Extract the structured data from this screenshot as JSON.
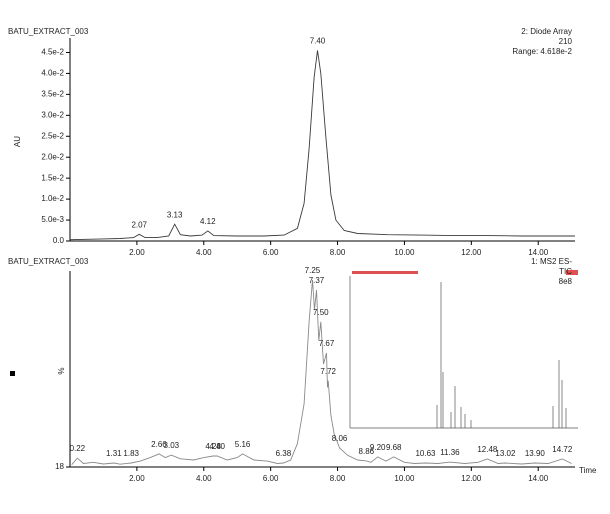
{
  "chart_data": [
    {
      "type": "line",
      "title": "BATU_EXTRACT_003",
      "header_right": [
        "2: Diode Array",
        "210",
        "Range: 4.618e-2"
      ],
      "y_label": "AU",
      "x": [
        0.0,
        0.5,
        1.0,
        1.5,
        1.9,
        2.07,
        2.25,
        2.6,
        2.95,
        3.13,
        3.3,
        3.6,
        3.95,
        4.12,
        4.3,
        5.0,
        5.8,
        6.4,
        6.8,
        7.0,
        7.15,
        7.3,
        7.4,
        7.5,
        7.65,
        7.8,
        7.95,
        8.2,
        8.6,
        9.5,
        10.5,
        11.5,
        12.5,
        13.5,
        14.5,
        15.1
      ],
      "series": [
        {
          "color": "#3a3a3a",
          "values": [
            0.0003,
            0.0004,
            0.0005,
            0.0006,
            0.0008,
            0.0016,
            0.0008,
            0.0008,
            0.0012,
            0.004,
            0.0015,
            0.0012,
            0.0014,
            0.0024,
            0.0013,
            0.0012,
            0.0012,
            0.0014,
            0.003,
            0.009,
            0.022,
            0.039,
            0.0455,
            0.04,
            0.025,
            0.011,
            0.005,
            0.0025,
            0.0018,
            0.0015,
            0.0014,
            0.0013,
            0.0013,
            0.0012,
            0.0012,
            0.0012
          ]
        }
      ],
      "peaks": [
        {
          "value": 2.07,
          "label": "2.07",
          "y": 0.0016
        },
        {
          "value": 3.13,
          "label": "3.13",
          "y": 0.004
        },
        {
          "value": 4.12,
          "label": "4.12",
          "y": 0.0024
        },
        {
          "value": 7.4,
          "label": "7.40",
          "y": 0.0455
        }
      ],
      "xlim": [
        0,
        15.1
      ],
      "ylim": [
        0,
        0.0475
      ],
      "xticks": [
        {
          "value": 2,
          "label": "2.00"
        },
        {
          "value": 4,
          "label": "4.00"
        },
        {
          "value": 6,
          "label": "6.00"
        },
        {
          "value": 8,
          "label": "8.00"
        },
        {
          "value": 10,
          "label": "10.00"
        },
        {
          "value": 12,
          "label": "12.00"
        },
        {
          "value": 14,
          "label": "14.00"
        }
      ],
      "yticks": [
        {
          "value": 0,
          "label": "0.0"
        },
        {
          "value": 0.005,
          "label": "5.0e-3"
        },
        {
          "value": 0.01,
          "label": "1.0e-2"
        },
        {
          "value": 0.015,
          "label": "1.5e-2"
        },
        {
          "value": 0.02,
          "label": "2.0e-2"
        },
        {
          "value": 0.025,
          "label": "2.5e-2"
        },
        {
          "value": 0.03,
          "label": "3.0e-2"
        },
        {
          "value": 0.035,
          "label": "3.5e-2"
        },
        {
          "value": 0.04,
          "label": "4.0e-2"
        },
        {
          "value": 0.045,
          "label": "4.5e-2"
        }
      ]
    },
    {
      "type": "line",
      "title": "BATU_EXTRACT_003",
      "header_right": [
        "1: MS2 ES-",
        "TIC",
        "8e8"
      ],
      "y_label": "%",
      "x_label": "Time",
      "x": [
        0.05,
        0.22,
        0.4,
        0.7,
        1.0,
        1.31,
        1.5,
        1.83,
        2.1,
        2.4,
        2.66,
        2.85,
        3.03,
        3.3,
        3.7,
        4.0,
        4.28,
        4.4,
        4.7,
        5.0,
        5.16,
        5.5,
        5.9,
        6.2,
        6.38,
        6.6,
        6.8,
        7.0,
        7.15,
        7.25,
        7.31,
        7.37,
        7.44,
        7.5,
        7.58,
        7.67,
        7.7,
        7.72,
        7.8,
        7.9,
        8.06,
        8.3,
        8.6,
        8.86,
        9.0,
        9.2,
        9.45,
        9.68,
        10.0,
        10.3,
        10.63,
        11.0,
        11.36,
        11.8,
        12.2,
        12.48,
        12.8,
        13.02,
        13.5,
        13.9,
        14.3,
        14.72,
        15.0
      ],
      "series": [
        {
          "color": "#8a8a8a",
          "values": [
            19,
            21.8,
            19.5,
            20,
            19.3,
            19.7,
            19.2,
            19.7,
            20.5,
            22,
            23.6,
            22,
            23.1,
            21.5,
            21,
            22,
            22.7,
            22.7,
            21,
            22,
            23.6,
            21,
            20.5,
            19.5,
            19.7,
            21,
            28,
            45,
            80,
            97.9,
            85,
            93.6,
            72,
            80,
            62,
            66.7,
            52,
            54.8,
            40,
            32,
            26.1,
            23,
            21,
            20.6,
            20,
            22.3,
            20.5,
            22.3,
            20,
            19.5,
            19.7,
            19.5,
            20.1,
            19.5,
            20,
            21.4,
            19.5,
            19.7,
            19.3,
            19.7,
            19.5,
            21.4,
            19.5
          ]
        }
      ],
      "peaks": [
        {
          "value": 0.22,
          "label": "0.22",
          "y": 21.8
        },
        {
          "value": 1.31,
          "label": "1.31",
          "y": 19.7
        },
        {
          "value": 1.83,
          "label": "1.83",
          "y": 19.7
        },
        {
          "value": 2.66,
          "label": "2.66",
          "y": 23.6
        },
        {
          "value": 3.03,
          "label": "3.03",
          "y": 23.1
        },
        {
          "value": 4.28,
          "label": "4.28",
          "y": 22.7
        },
        {
          "value": 4.4,
          "label": "4.40",
          "y": 22.7
        },
        {
          "value": 5.16,
          "label": "5.16",
          "y": 23.6
        },
        {
          "value": 6.38,
          "label": "6.38",
          "y": 19.7
        },
        {
          "value": 7.25,
          "label": "7.25",
          "y": 97.9
        },
        {
          "value": 7.37,
          "label": "7.37",
          "y": 93.6
        },
        {
          "value": 7.5,
          "label": "7.50",
          "y": 80
        },
        {
          "value": 7.67,
          "label": "7.67",
          "y": 66.7
        },
        {
          "value": 7.72,
          "label": "7.72",
          "y": 54.8
        },
        {
          "value": 8.06,
          "label": "8.06",
          "y": 26.1
        },
        {
          "value": 8.86,
          "label": "8.86",
          "y": 20.6
        },
        {
          "value": 9.2,
          "label": "9.20",
          "y": 22.3
        },
        {
          "value": 9.68,
          "label": "9.68",
          "y": 22.3
        },
        {
          "value": 10.63,
          "label": "10.63",
          "y": 19.7
        },
        {
          "value": 11.36,
          "label": "11.36",
          "y": 20.1
        },
        {
          "value": 12.48,
          "label": "12.48",
          "y": 21.4
        },
        {
          "value": 13.02,
          "label": "13.02",
          "y": 19.7
        },
        {
          "value": 13.9,
          "label": "13.90",
          "y": 19.7
        },
        {
          "value": 14.72,
          "label": "14.72",
          "y": 21.4
        }
      ],
      "xlim": [
        0,
        15.1
      ],
      "ylim": [
        18,
        100
      ],
      "xticks": [
        {
          "value": 2,
          "label": "2.00"
        },
        {
          "value": 4,
          "label": "4.00"
        },
        {
          "value": 6,
          "label": "6.00"
        },
        {
          "value": 8,
          "label": "8.00"
        },
        {
          "value": 10,
          "label": "10.00"
        },
        {
          "value": 12,
          "label": "12.00"
        },
        {
          "value": 14,
          "label": "14.00"
        }
      ],
      "yticks": [
        18
      ]
    }
  ]
}
